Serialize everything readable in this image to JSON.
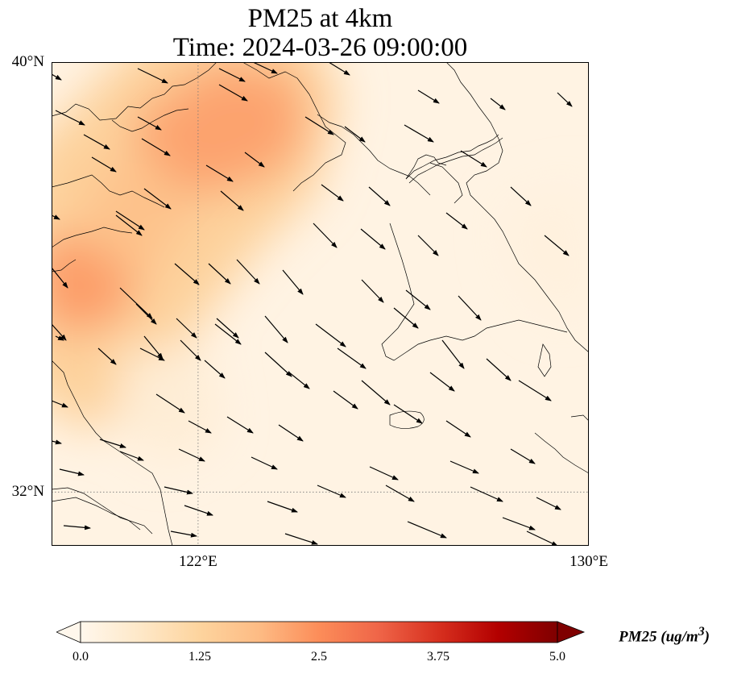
{
  "title": {
    "line1": "PM25 at 4km",
    "line2": "Time: 2024-03-26 09:00:00"
  },
  "map": {
    "lon_range": [
      119,
      130
    ],
    "lat_range": [
      31,
      40
    ],
    "lon_ticks": [
      {
        "lon": 122,
        "label": "122°E"
      },
      {
        "lon": 130,
        "label": "130°E"
      }
    ],
    "lat_ticks": [
      {
        "lat": 40,
        "label": "40°N"
      },
      {
        "lat": 32,
        "label": "32°N"
      }
    ],
    "gridlines": "dotted",
    "variable": "PM25",
    "hotspots": [
      {
        "lon": 123.2,
        "lat": 38.7,
        "value": 2.2
      },
      {
        "lon": 119.6,
        "lat": 35.7,
        "value": 2.3
      },
      {
        "lon": 121.0,
        "lat": 36.9,
        "value": 1.7
      },
      {
        "lon": 128.2,
        "lat": 33.0,
        "value": 0.25
      },
      {
        "lon": 121.7,
        "lat": 33.3,
        "value": 0.4
      }
    ],
    "background_value": 0.15,
    "colors": {
      "coast": "#000000",
      "arrow": "#000000",
      "grid": "#777777"
    }
  },
  "colorbar": {
    "min": 0.0,
    "max": 5.0,
    "ticks": [
      "0.0",
      "1.25",
      "2.5",
      "3.75",
      "5.0"
    ],
    "extend": "both",
    "cmap": "OrRd",
    "label_html": "PM25 (ug/m<sup>3</sup>)",
    "label": "PM25 (ug/m3)",
    "stops": [
      "#fff7ec",
      "#fee8c8",
      "#fdd49e",
      "#fdbb84",
      "#fc8d59",
      "#ef6548",
      "#d7301f",
      "#b30000",
      "#7f0000"
    ]
  }
}
